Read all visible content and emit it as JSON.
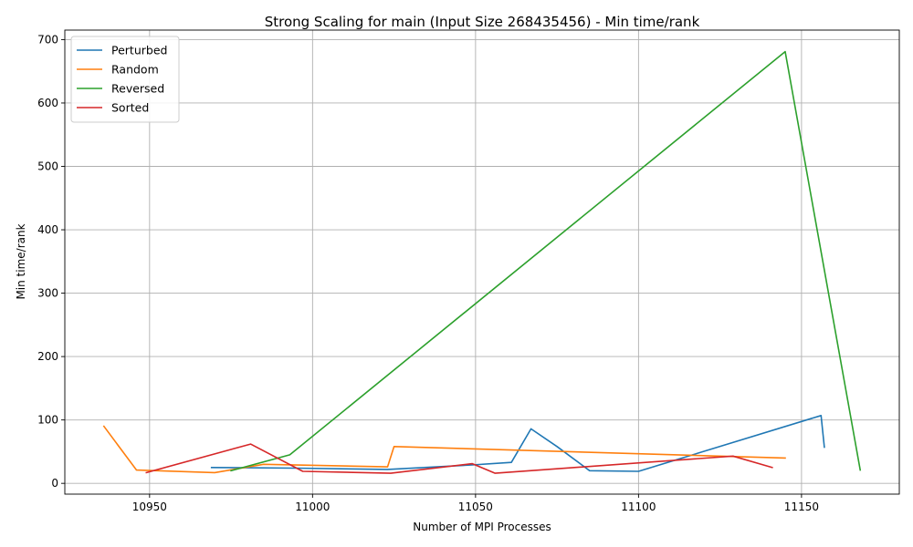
{
  "chart_data": {
    "type": "line",
    "title": "Strong Scaling for main (Input Size 268435456) - Min time/rank",
    "xlabel": "Number of MPI Processes",
    "ylabel": "Min time/rank",
    "xlim": [
      10924,
      11180
    ],
    "ylim": [
      -17,
      715
    ],
    "xticks": [
      10950,
      11000,
      11050,
      11100,
      11150
    ],
    "yticks": [
      0,
      100,
      200,
      300,
      400,
      500,
      600,
      700
    ],
    "grid": true,
    "legend_position": "top-left",
    "series": [
      {
        "name": "Perturbed",
        "color": "#1f77b4",
        "x": [
          10969,
          10995,
          11023,
          11049,
          11061,
          11067,
          11075,
          11085,
          11100,
          11156,
          11157
        ],
        "y": [
          25,
          24,
          22,
          29,
          33,
          86,
          58,
          20,
          19,
          107,
          57
        ]
      },
      {
        "name": "Random",
        "color": "#ff7f0e",
        "x": [
          10936,
          10946,
          10970,
          10985,
          11023,
          11025,
          11145
        ],
        "y": [
          90,
          21,
          17,
          30,
          26,
          58,
          40
        ]
      },
      {
        "name": "Reversed",
        "color": "#2ca02c",
        "x": [
          10975,
          10993,
          11145,
          11168
        ],
        "y": [
          20,
          45,
          681,
          21
        ]
      },
      {
        "name": "Sorted",
        "color": "#d62728",
        "x": [
          10949,
          10981,
          10997,
          11024,
          11049,
          11056,
          11129,
          11141
        ],
        "y": [
          17,
          62,
          19,
          16,
          31,
          16,
          43,
          25
        ]
      }
    ]
  }
}
